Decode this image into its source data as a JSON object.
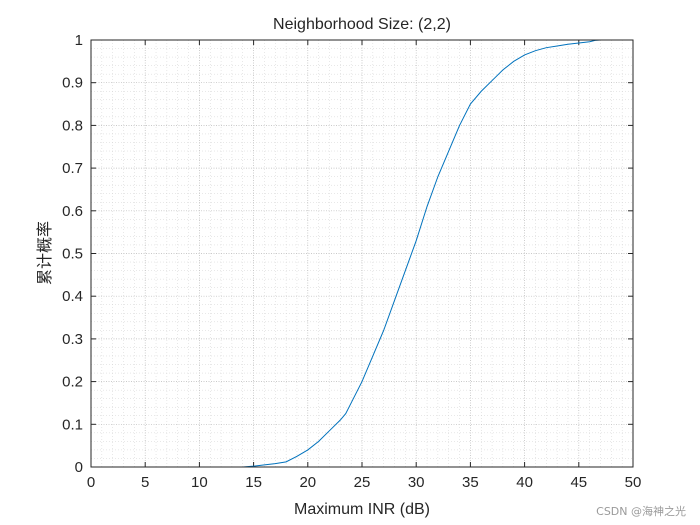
{
  "chart_data": {
    "type": "line",
    "title": "Neighborhood Size: (2,2)",
    "xlabel": "Maximum INR (dB)",
    "ylabel": "累计概率",
    "xlim": [
      0,
      50
    ],
    "ylim": [
      0,
      1
    ],
    "x_ticks": [
      0,
      5,
      10,
      15,
      20,
      25,
      30,
      35,
      40,
      45,
      50
    ],
    "y_ticks": [
      0,
      0.1,
      0.2,
      0.3,
      0.4,
      0.5,
      0.6,
      0.7,
      0.8,
      0.9,
      1
    ],
    "x_tick_labels": [
      "0",
      "5",
      "10",
      "15",
      "20",
      "25",
      "30",
      "35",
      "40",
      "45",
      "50"
    ],
    "y_tick_labels": [
      "0",
      "0.1",
      "0.2",
      "0.3",
      "0.4",
      "0.5",
      "0.6",
      "0.7",
      "0.8",
      "0.9",
      "1"
    ],
    "grid": "major and minor (dotted)",
    "line_color": "#0072bd",
    "series": [
      {
        "x": [
          12,
          14,
          15,
          16,
          17,
          18,
          19,
          20,
          21,
          22,
          23,
          23.5,
          24,
          25,
          26,
          27,
          28,
          29,
          30,
          31,
          32,
          33,
          34,
          35,
          36,
          37,
          38,
          39,
          40,
          41,
          42,
          43,
          44,
          45,
          46,
          46.5,
          47
        ],
        "y": [
          0,
          0,
          0.002,
          0.005,
          0.008,
          0.012,
          0.025,
          0.04,
          0.06,
          0.085,
          0.11,
          0.125,
          0.15,
          0.2,
          0.26,
          0.32,
          0.39,
          0.46,
          0.53,
          0.61,
          0.68,
          0.74,
          0.8,
          0.85,
          0.88,
          0.905,
          0.93,
          0.95,
          0.965,
          0.975,
          0.982,
          0.986,
          0.99,
          0.993,
          0.996,
          0.999,
          1
        ]
      }
    ]
  },
  "watermark": "CSDN @海神之光"
}
